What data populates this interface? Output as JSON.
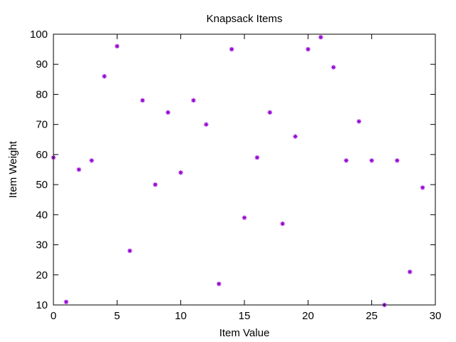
{
  "chart_data": {
    "type": "scatter",
    "title": "Knapsack Items",
    "xlabel": "Item Value",
    "ylabel": "Item Weight",
    "xlim": [
      0,
      30
    ],
    "ylim": [
      10,
      100
    ],
    "x_ticks": [
      0,
      5,
      10,
      15,
      20,
      25,
      30
    ],
    "y_ticks": [
      10,
      20,
      30,
      40,
      50,
      60,
      70,
      80,
      90,
      100
    ],
    "grid": false,
    "legend": "none",
    "marker": "asterisk",
    "marker_color": "#9400d3",
    "points": [
      {
        "x": 0,
        "y": 59
      },
      {
        "x": 1,
        "y": 11
      },
      {
        "x": 2,
        "y": 55
      },
      {
        "x": 3,
        "y": 58
      },
      {
        "x": 4,
        "y": 86
      },
      {
        "x": 5,
        "y": 96
      },
      {
        "x": 6,
        "y": 28
      },
      {
        "x": 7,
        "y": 78
      },
      {
        "x": 8,
        "y": 50
      },
      {
        "x": 9,
        "y": 74
      },
      {
        "x": 10,
        "y": 54
      },
      {
        "x": 11,
        "y": 78
      },
      {
        "x": 12,
        "y": 70
      },
      {
        "x": 13,
        "y": 17
      },
      {
        "x": 14,
        "y": 95
      },
      {
        "x": 15,
        "y": 39
      },
      {
        "x": 16,
        "y": 59
      },
      {
        "x": 17,
        "y": 74
      },
      {
        "x": 18,
        "y": 37
      },
      {
        "x": 19,
        "y": 66
      },
      {
        "x": 20,
        "y": 95
      },
      {
        "x": 21,
        "y": 99
      },
      {
        "x": 22,
        "y": 89
      },
      {
        "x": 23,
        "y": 58
      },
      {
        "x": 24,
        "y": 71
      },
      {
        "x": 25,
        "y": 58
      },
      {
        "x": 26,
        "y": 10
      },
      {
        "x": 27,
        "y": 58
      },
      {
        "x": 28,
        "y": 21
      },
      {
        "x": 29,
        "y": 49
      }
    ]
  }
}
